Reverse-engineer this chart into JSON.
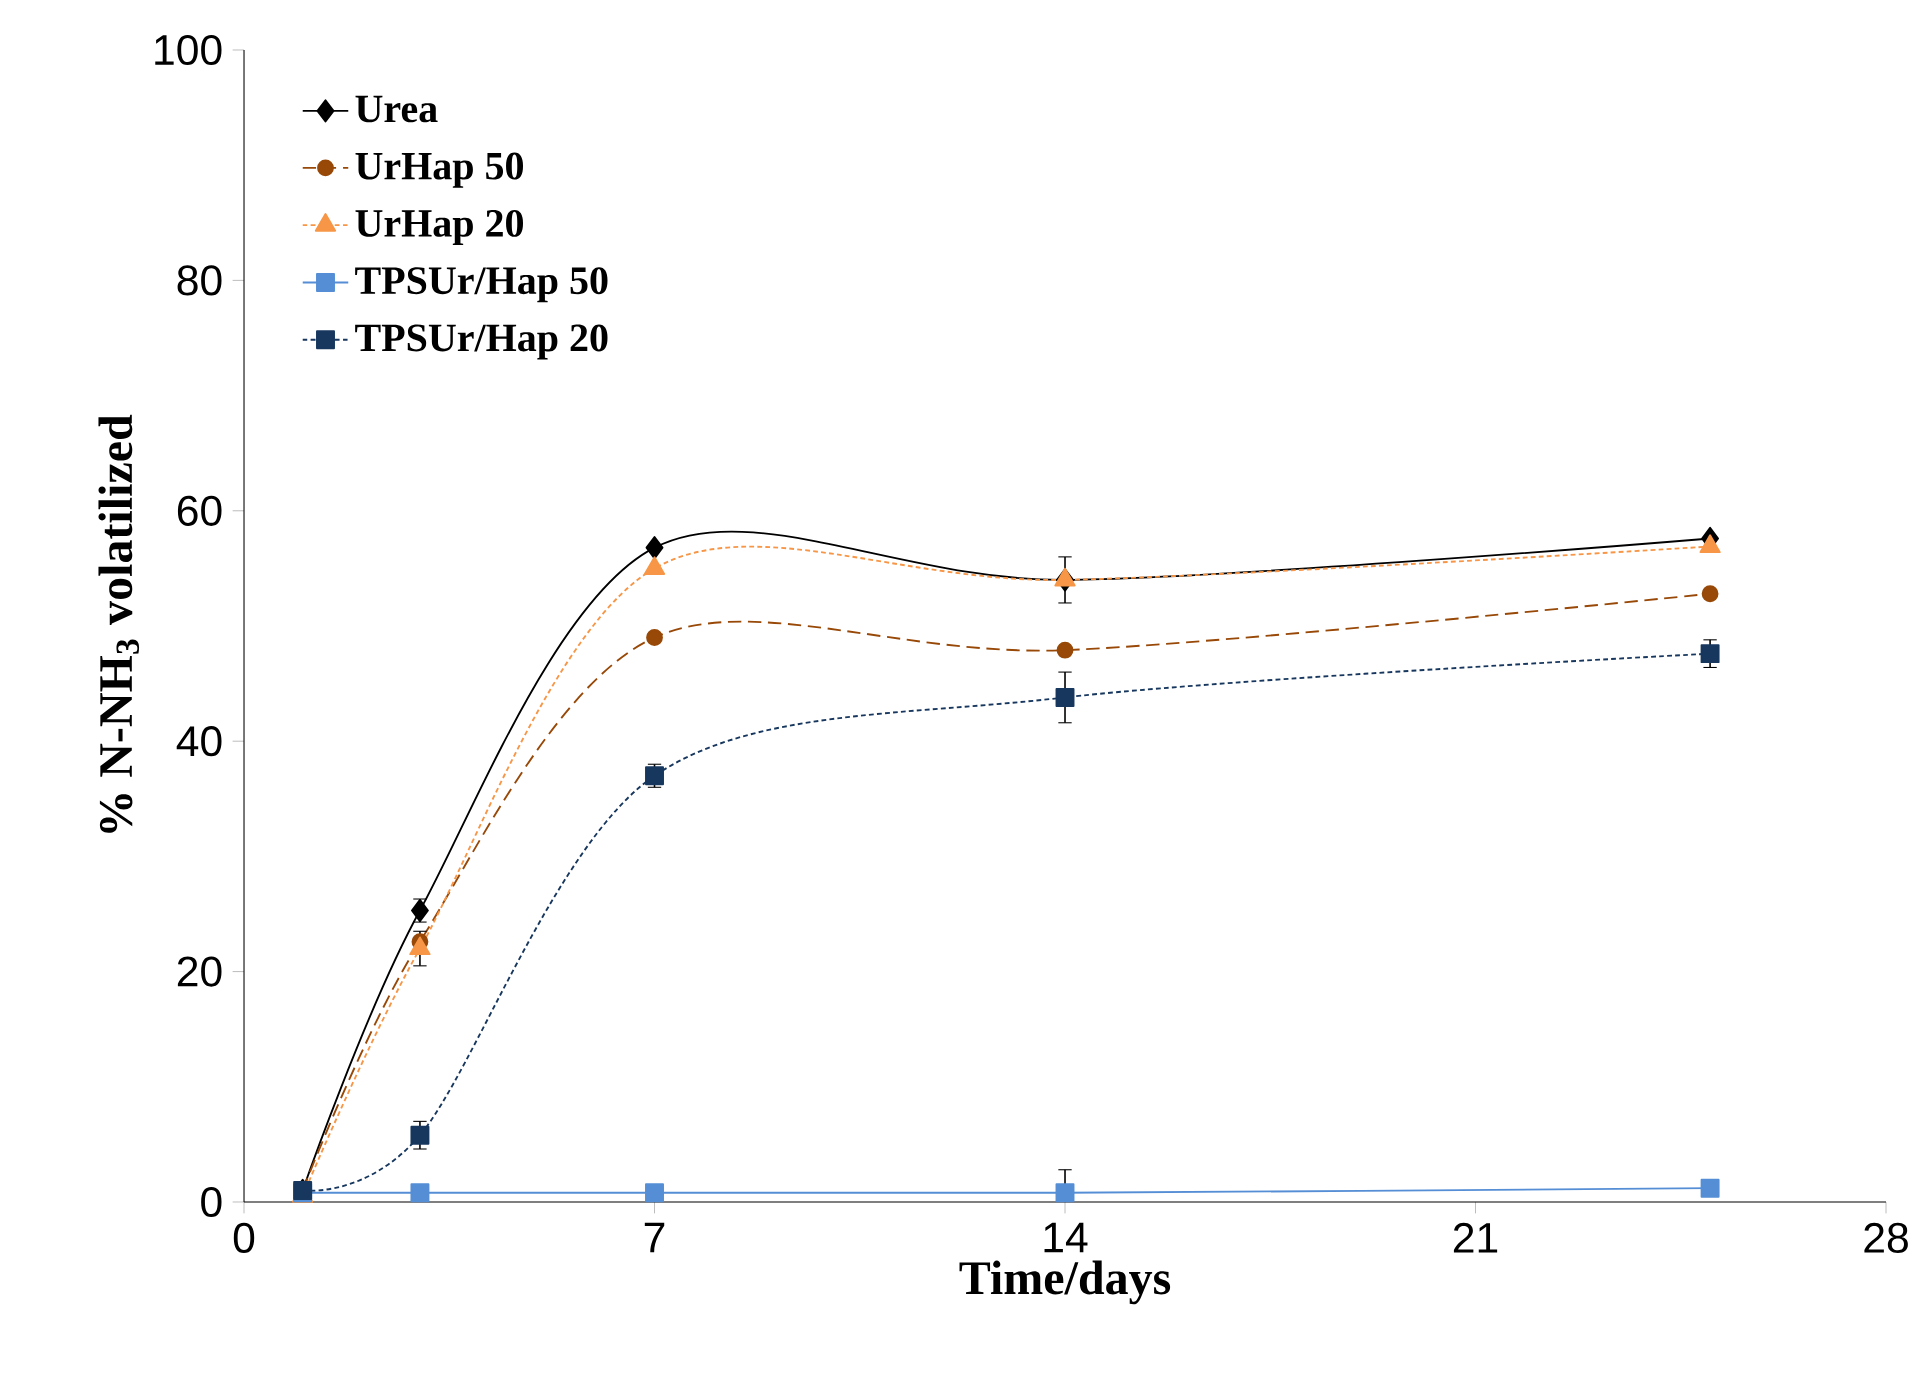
{
  "chart_data": {
    "type": "line",
    "xlabel": "Time/days",
    "ylabel": "% N-NH$_{3}$ volatilized",
    "xlim": [
      0,
      28
    ],
    "xticks": [
      0,
      7,
      14,
      21,
      28
    ],
    "ylim": [
      0,
      100
    ],
    "yticks": [
      0,
      20,
      40,
      60,
      80,
      100
    ],
    "grid": false,
    "legend": "top left",
    "x": [
      1,
      3,
      7,
      14,
      25
    ],
    "series": [
      {
        "name": "Urea",
        "color": "#000000",
        "marker": "diamond",
        "line_style": "solid",
        "values": [
          1,
          25.3,
          56.8,
          54,
          57.6
        ],
        "errors": [
          null,
          1,
          null,
          null,
          null
        ]
      },
      {
        "name": "UrHap 50",
        "color": "#984807",
        "marker": "circle",
        "line_style": "dashed",
        "values": [
          1,
          22.6,
          49,
          47.9,
          52.8
        ],
        "errors": [
          null,
          null,
          null,
          null,
          null
        ]
      },
      {
        "name": "UrHap 20",
        "color": "#f79646",
        "marker": "triangle",
        "line_style": "dotted",
        "values": [
          0.5,
          22,
          55,
          54,
          56.9
        ],
        "errors": [
          null,
          1.5,
          null,
          2,
          null
        ]
      },
      {
        "name": "TPSUr/Hap 50",
        "color": "#558ed5",
        "marker": "square",
        "line_style": "solid",
        "values": [
          0.8,
          0.8,
          0.8,
          0.8,
          1.2
        ],
        "errors": [
          null,
          null,
          null,
          2,
          null
        ]
      },
      {
        "name": "TPSUr/Hap 20",
        "color": "#17375e",
        "marker": "square",
        "line_style": "dotted",
        "values": [
          1,
          5.8,
          37,
          43.8,
          47.6
        ],
        "errors": [
          null,
          1.2,
          1,
          2.2,
          1.2
        ]
      }
    ]
  }
}
